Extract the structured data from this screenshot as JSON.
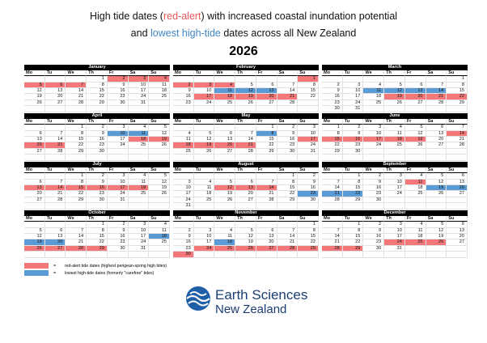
{
  "title": {
    "line1": [
      "High tide dates (",
      "red-alert",
      ") with increased coastal inundation potential"
    ],
    "line2": [
      "and ",
      "lowest high-tide",
      " dates across all New Zealand"
    ],
    "year": "2026"
  },
  "tide_colors": {
    "red": "#f4787a",
    "blue": "#5b9bd5"
  },
  "weekdays": [
    "Mo",
    "Tu",
    "We",
    "Th",
    "Fr",
    "Sa",
    "Su"
  ],
  "months": [
    {
      "name": "January",
      "weeks": [
        [
          null,
          null,
          null,
          1,
          {
            "day": 2,
            "tide": "red"
          },
          {
            "day": 3,
            "tide": "red"
          },
          {
            "day": 4,
            "tide": "red"
          }
        ],
        [
          {
            "day": 5,
            "tide": "red"
          },
          {
            "day": 6,
            "tide": "red"
          },
          {
            "day": 7,
            "tide": "red"
          },
          8,
          9,
          10,
          11
        ],
        [
          12,
          13,
          14,
          15,
          16,
          17,
          18
        ],
        [
          19,
          20,
          21,
          22,
          23,
          24,
          25
        ],
        [
          26,
          27,
          28,
          29,
          30,
          31,
          null
        ]
      ]
    },
    {
      "name": "February",
      "weeks": [
        [
          null,
          null,
          null,
          null,
          null,
          null,
          {
            "day": 1,
            "tide": "red"
          }
        ],
        [
          {
            "day": 2,
            "tide": "red"
          },
          {
            "day": 3,
            "tide": "red"
          },
          {
            "day": 4,
            "tide": "red"
          },
          5,
          6,
          7,
          8
        ],
        [
          9,
          10,
          {
            "day": 11,
            "tide": "blue"
          },
          {
            "day": 12,
            "tide": "blue"
          },
          {
            "day": 13,
            "tide": "blue"
          },
          14,
          15
        ],
        [
          16,
          {
            "day": 17,
            "tide": "red"
          },
          {
            "day": 18,
            "tide": "red"
          },
          {
            "day": 19,
            "tide": "red"
          },
          {
            "day": 20,
            "tide": "red"
          },
          {
            "day": 21,
            "tide": "red"
          },
          22
        ],
        [
          23,
          24,
          25,
          26,
          27,
          28,
          null
        ]
      ]
    },
    {
      "name": "March",
      "weeks": [
        [
          null,
          null,
          null,
          null,
          null,
          null,
          1
        ],
        [
          2,
          3,
          4,
          5,
          6,
          7,
          8
        ],
        [
          9,
          10,
          {
            "day": 11,
            "tide": "blue"
          },
          {
            "day": 12,
            "tide": "blue"
          },
          {
            "day": 13,
            "tide": "blue"
          },
          {
            "day": 14,
            "tide": "blue"
          },
          15
        ],
        [
          16,
          17,
          18,
          {
            "day": 19,
            "tide": "red"
          },
          {
            "day": 20,
            "tide": "red"
          },
          {
            "day": 21,
            "tide": "red"
          },
          {
            "day": 22,
            "tide": "red"
          }
        ],
        [
          23,
          24,
          25,
          26,
          27,
          28,
          29
        ],
        [
          30,
          31,
          null,
          null,
          null,
          null,
          null
        ]
      ]
    },
    {
      "name": "April",
      "weeks": [
        [
          null,
          null,
          1,
          2,
          3,
          4,
          5
        ],
        [
          6,
          7,
          8,
          9,
          {
            "day": 10,
            "tide": "blue"
          },
          {
            "day": 11,
            "tide": "blue"
          },
          12
        ],
        [
          13,
          14,
          15,
          16,
          17,
          {
            "day": 18,
            "tide": "red"
          },
          {
            "day": 19,
            "tide": "red"
          }
        ],
        [
          {
            "day": 20,
            "tide": "red"
          },
          {
            "day": 21,
            "tide": "red"
          },
          22,
          23,
          24,
          25,
          26
        ],
        [
          27,
          28,
          29,
          30,
          null,
          null,
          null
        ]
      ]
    },
    {
      "name": "May",
      "weeks": [
        [
          null,
          null,
          null,
          null,
          1,
          2,
          3
        ],
        [
          4,
          5,
          6,
          7,
          {
            "day": 8,
            "tide": "blue"
          },
          9,
          10
        ],
        [
          11,
          12,
          13,
          14,
          15,
          16,
          {
            "day": 17,
            "tide": "red"
          }
        ],
        [
          {
            "day": 18,
            "tide": "red"
          },
          {
            "day": 19,
            "tide": "red"
          },
          {
            "day": 20,
            "tide": "red"
          },
          {
            "day": 21,
            "tide": "red"
          },
          22,
          23,
          24
        ],
        [
          25,
          26,
          27,
          28,
          29,
          30,
          31
        ]
      ]
    },
    {
      "name": "June",
      "weeks": [
        [
          1,
          2,
          3,
          4,
          5,
          6,
          7
        ],
        [
          8,
          9,
          10,
          11,
          12,
          13,
          {
            "day": 14,
            "tide": "red"
          }
        ],
        [
          {
            "day": 15,
            "tide": "red"
          },
          {
            "day": 16,
            "tide": "red"
          },
          {
            "day": 17,
            "tide": "red"
          },
          {
            "day": 18,
            "tide": "red"
          },
          {
            "day": 19,
            "tide": "red"
          },
          20,
          21
        ],
        [
          22,
          23,
          24,
          25,
          26,
          27,
          28
        ],
        [
          29,
          30,
          null,
          null,
          null,
          null,
          null
        ]
      ]
    },
    {
      "name": "July",
      "weeks": [
        [
          null,
          null,
          1,
          2,
          3,
          4,
          5
        ],
        [
          6,
          7,
          8,
          9,
          10,
          11,
          12
        ],
        [
          {
            "day": 13,
            "tide": "red"
          },
          {
            "day": 14,
            "tide": "red"
          },
          {
            "day": 15,
            "tide": "red"
          },
          {
            "day": 16,
            "tide": "red"
          },
          {
            "day": 17,
            "tide": "red"
          },
          {
            "day": 18,
            "tide": "red"
          },
          19
        ],
        [
          20,
          21,
          22,
          23,
          24,
          25,
          26
        ],
        [
          27,
          28,
          29,
          30,
          31,
          null,
          null
        ]
      ]
    },
    {
      "name": "August",
      "weeks": [
        [
          null,
          null,
          null,
          null,
          null,
          1,
          2
        ],
        [
          3,
          4,
          5,
          6,
          7,
          8,
          9
        ],
        [
          10,
          11,
          {
            "day": 12,
            "tide": "red"
          },
          {
            "day": 13,
            "tide": "red"
          },
          {
            "day": 14,
            "tide": "red"
          },
          15,
          16
        ],
        [
          17,
          18,
          19,
          20,
          21,
          22,
          {
            "day": 23,
            "tide": "blue"
          }
        ],
        [
          24,
          25,
          26,
          27,
          28,
          29,
          30
        ],
        [
          31,
          null,
          null,
          null,
          null,
          null,
          null
        ]
      ]
    },
    {
      "name": "September",
      "weeks": [
        [
          null,
          1,
          2,
          3,
          4,
          5,
          6
        ],
        [
          7,
          8,
          9,
          10,
          {
            "day": 11,
            "tide": "red"
          },
          12,
          13
        ],
        [
          14,
          15,
          16,
          17,
          18,
          {
            "day": 19,
            "tide": "blue"
          },
          {
            "day": 20,
            "tide": "blue"
          }
        ],
        [
          {
            "day": 21,
            "tide": "blue"
          },
          {
            "day": 22,
            "tide": "blue"
          },
          23,
          24,
          25,
          26,
          27
        ],
        [
          28,
          29,
          30,
          null,
          null,
          null,
          null
        ]
      ]
    },
    {
      "name": "October",
      "weeks": [
        [
          null,
          null,
          null,
          1,
          2,
          3,
          4
        ],
        [
          5,
          6,
          7,
          8,
          9,
          10,
          11
        ],
        [
          12,
          13,
          14,
          15,
          16,
          17,
          {
            "day": 18,
            "tide": "blue"
          }
        ],
        [
          {
            "day": 19,
            "tide": "blue"
          },
          {
            "day": 20,
            "tide": "blue"
          },
          21,
          22,
          23,
          24,
          25
        ],
        [
          {
            "day": 26,
            "tide": "red"
          },
          {
            "day": 27,
            "tide": "red"
          },
          {
            "day": 28,
            "tide": "red"
          },
          {
            "day": 29,
            "tide": "red"
          },
          30,
          31,
          null
        ]
      ]
    },
    {
      "name": "November",
      "weeks": [
        [
          null,
          null,
          null,
          null,
          null,
          null,
          1
        ],
        [
          2,
          3,
          4,
          5,
          6,
          7,
          8
        ],
        [
          9,
          10,
          11,
          12,
          13,
          14,
          15
        ],
        [
          16,
          17,
          {
            "day": 18,
            "tide": "blue"
          },
          19,
          20,
          21,
          22
        ],
        [
          23,
          {
            "day": 24,
            "tide": "red"
          },
          {
            "day": 25,
            "tide": "red"
          },
          {
            "day": 26,
            "tide": "red"
          },
          {
            "day": 27,
            "tide": "red"
          },
          {
            "day": 28,
            "tide": "red"
          },
          {
            "day": 29,
            "tide": "red"
          }
        ],
        [
          {
            "day": 30,
            "tide": "red"
          },
          null,
          null,
          null,
          null,
          null,
          null
        ]
      ]
    },
    {
      "name": "December",
      "weeks": [
        [
          null,
          1,
          2,
          3,
          4,
          5,
          6
        ],
        [
          7,
          8,
          9,
          10,
          11,
          12,
          13
        ],
        [
          14,
          15,
          16,
          17,
          18,
          19,
          20
        ],
        [
          21,
          22,
          23,
          {
            "day": 24,
            "tide": "red"
          },
          {
            "day": 25,
            "tide": "red"
          },
          {
            "day": 26,
            "tide": "red"
          },
          27
        ],
        [
          {
            "day": 28,
            "tide": "red"
          },
          {
            "day": 29,
            "tide": "red"
          },
          30,
          31,
          null,
          null,
          null
        ]
      ]
    }
  ],
  "legend": [
    {
      "tide": "red",
      "sign": "=",
      "text": "red-alert tide dates (highest perigean-spring high tides)"
    },
    {
      "tide": "blue",
      "sign": "=",
      "text": "lowest high-tide dates (formerly \"carefree\" tides)"
    }
  ],
  "logo": {
    "line1": "Earth Sciences",
    "line2": "New Zealand"
  }
}
